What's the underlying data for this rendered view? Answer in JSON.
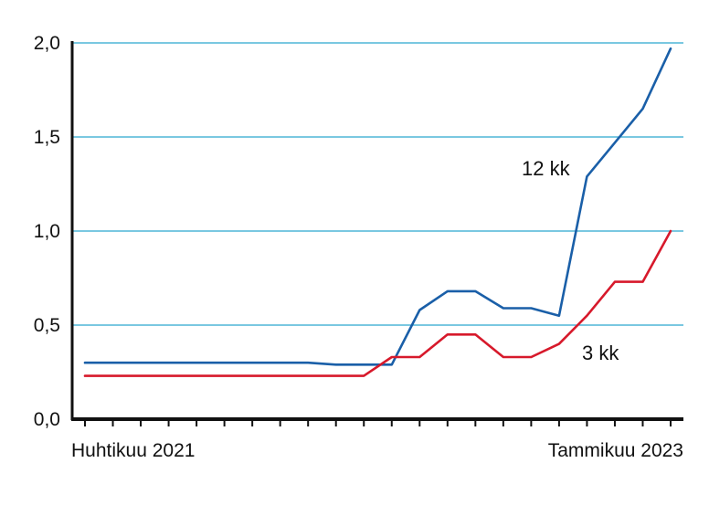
{
  "chart_data": {
    "type": "line",
    "title": "",
    "xlabel": "",
    "ylabel": "",
    "x_labels": {
      "start": "Huhtikuu 2021",
      "end": "Tammikuu 2023"
    },
    "x_start": "2021-04",
    "x_end": "2023-01",
    "ylim": [
      0,
      2.0
    ],
    "yticks": [
      "0,0",
      "0,5",
      "1,0",
      "1,5",
      "2,0"
    ],
    "grid": true,
    "series": [
      {
        "name": "12 kk",
        "color": "#1a5fa8",
        "x": [
          "2021-04",
          "2021-05",
          "2021-06",
          "2021-07",
          "2021-08",
          "2021-09",
          "2021-10",
          "2021-11",
          "2021-12",
          "2022-01",
          "2022-02",
          "2022-03",
          "2022-04",
          "2022-05",
          "2022-06",
          "2022-07",
          "2022-08",
          "2022-09",
          "2022-10",
          "2022-11",
          "2022-12",
          "2023-01"
        ],
        "values": [
          0.3,
          0.3,
          0.3,
          0.3,
          0.3,
          0.3,
          0.3,
          0.3,
          0.3,
          0.29,
          0.29,
          0.29,
          0.58,
          0.68,
          0.68,
          0.59,
          0.59,
          0.55,
          1.29,
          1.47,
          1.65,
          1.97
        ]
      },
      {
        "name": "3 kk",
        "color": "#d7192b",
        "x": [
          "2021-04",
          "2021-05",
          "2021-06",
          "2021-07",
          "2021-08",
          "2021-09",
          "2021-10",
          "2021-11",
          "2021-12",
          "2022-01",
          "2022-02",
          "2022-03",
          "2022-04",
          "2022-05",
          "2022-06",
          "2022-07",
          "2022-08",
          "2022-09",
          "2022-10",
          "2022-11",
          "2022-12",
          "2023-01"
        ],
        "values": [
          0.23,
          0.23,
          0.23,
          0.23,
          0.23,
          0.23,
          0.23,
          0.23,
          0.23,
          0.23,
          0.23,
          0.33,
          0.33,
          0.45,
          0.45,
          0.33,
          0.33,
          0.4,
          0.55,
          0.73,
          0.73,
          1.0
        ]
      }
    ]
  },
  "gridline_color": "#2aa6cf"
}
